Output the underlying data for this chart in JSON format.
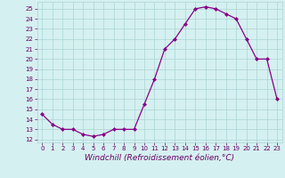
{
  "x": [
    0,
    1,
    2,
    3,
    4,
    5,
    6,
    7,
    8,
    9,
    10,
    11,
    12,
    13,
    14,
    15,
    16,
    17,
    18,
    19,
    20,
    21,
    22,
    23
  ],
  "y": [
    14.5,
    13.5,
    13.0,
    13.0,
    12.5,
    12.3,
    12.5,
    13.0,
    13.0,
    13.0,
    15.5,
    18.0,
    21.0,
    22.0,
    23.5,
    25.0,
    25.2,
    25.0,
    24.5,
    24.0,
    22.0,
    20.0,
    20.0,
    16.0
  ],
  "line_color": "#880088",
  "marker_color": "#880088",
  "bg_color": "#d5f0f0",
  "grid_color": "#aad4d4",
  "xlabel": "Windchill (Refroidissement éolien,°C)",
  "xlim": [
    -0.5,
    23.5
  ],
  "ylim": [
    11.7,
    25.7
  ],
  "yticks": [
    12,
    13,
    14,
    15,
    16,
    17,
    18,
    19,
    20,
    21,
    22,
    23,
    24,
    25
  ],
  "xticks": [
    0,
    1,
    2,
    3,
    4,
    5,
    6,
    7,
    8,
    9,
    10,
    11,
    12,
    13,
    14,
    15,
    16,
    17,
    18,
    19,
    20,
    21,
    22,
    23
  ],
  "font_color": "#660066",
  "font_size_ticks": 5.0,
  "font_size_xlabel": 6.5,
  "marker_size": 2.0,
  "line_width": 0.9
}
